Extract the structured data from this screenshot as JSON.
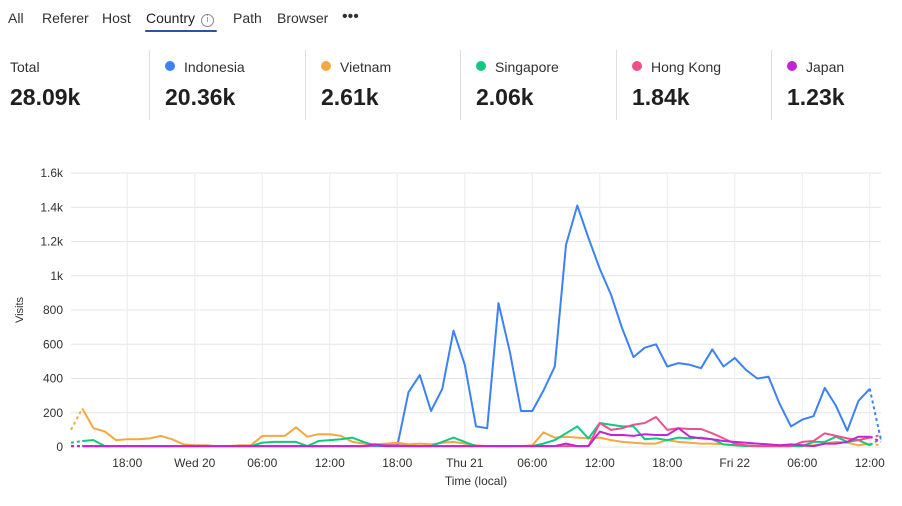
{
  "tabs": [
    {
      "label": "All",
      "x": 0
    },
    {
      "label": "Referer"
    },
    {
      "label": "Host"
    },
    {
      "label": "Country",
      "active": true
    },
    {
      "label": "Path"
    },
    {
      "label": "Browser"
    }
  ],
  "more_label": "•••",
  "info_glyph": "i",
  "stats": [
    {
      "label": "Total",
      "value": "28.09k",
      "color": ""
    },
    {
      "label": "Indonesia",
      "value": "20.36k",
      "color": "#3b82f6"
    },
    {
      "label": "Vietnam",
      "value": "2.61k",
      "color": "#f5a742"
    },
    {
      "label": "Singapore",
      "value": "2.06k",
      "color": "#10c981"
    },
    {
      "label": "Hong Kong",
      "value": "1.84k",
      "color": "#f0508a"
    },
    {
      "label": "Japan",
      "value": "1.23k",
      "color": "#c026d3"
    }
  ],
  "chart_data": {
    "type": "line",
    "xlabel": "Time (local)",
    "ylabel": "Visits",
    "ylim": [
      0,
      1600
    ],
    "yticks": [
      0,
      200,
      400,
      600,
      800,
      1000,
      1200,
      1400,
      1600
    ],
    "ytick_labels": [
      "0",
      "200",
      "400",
      "600",
      "800",
      "1k",
      "1.2k",
      "1.4k",
      "1.6k"
    ],
    "x_start_hour": 13,
    "x_step_hours": 1,
    "xticks": [
      {
        "hour": 18,
        "label": "18:00"
      },
      {
        "hour": 24,
        "label": "Wed 20"
      },
      {
        "hour": 30,
        "label": "06:00"
      },
      {
        "hour": 36,
        "label": "12:00"
      },
      {
        "hour": 42,
        "label": "18:00"
      },
      {
        "hour": 48,
        "label": "Thu 21"
      },
      {
        "hour": 54,
        "label": "06:00"
      },
      {
        "hour": 60,
        "label": "12:00"
      },
      {
        "hour": 66,
        "label": "18:00"
      },
      {
        "hour": 72,
        "label": "Fri 22"
      },
      {
        "hour": 78,
        "label": "06:00"
      },
      {
        "hour": 84,
        "label": "12:00"
      }
    ],
    "grid": true,
    "series": [
      {
        "name": "Indonesia",
        "color": "#3b82f6",
        "values": [
          5,
          5,
          5,
          5,
          5,
          5,
          5,
          5,
          5,
          5,
          5,
          5,
          5,
          5,
          5,
          5,
          5,
          5,
          5,
          5,
          5,
          5,
          5,
          5,
          5,
          5,
          5,
          5,
          5,
          5,
          320,
          420,
          210,
          340,
          680,
          480,
          120,
          110,
          840,
          560,
          210,
          210,
          330,
          470,
          1180,
          1410,
          1220,
          1040,
          890,
          690,
          525,
          580,
          600,
          470,
          490,
          480,
          460,
          570,
          470,
          520,
          450,
          400,
          410,
          250,
          120,
          160,
          180,
          345,
          240,
          95,
          270,
          340,
          40
        ]
      },
      {
        "name": "Vietnam",
        "color": "#f5a742",
        "values": [
          100,
          225,
          110,
          90,
          40,
          45,
          45,
          50,
          65,
          45,
          15,
          10,
          10,
          5,
          5,
          10,
          10,
          65,
          65,
          65,
          115,
          60,
          75,
          75,
          65,
          30,
          20,
          15,
          20,
          25,
          15,
          20,
          15,
          25,
          30,
          20,
          10,
          5,
          5,
          5,
          5,
          10,
          85,
          55,
          60,
          55,
          50,
          55,
          40,
          30,
          25,
          20,
          20,
          40,
          30,
          25,
          20,
          20,
          15,
          10,
          10,
          5,
          10,
          10,
          5,
          5,
          10,
          20,
          30,
          25,
          10,
          20,
          10
        ]
      },
      {
        "name": "Singapore",
        "color": "#10c981",
        "values": [
          25,
          35,
          40,
          5,
          5,
          5,
          5,
          5,
          5,
          5,
          5,
          5,
          5,
          5,
          5,
          5,
          5,
          25,
          30,
          30,
          30,
          5,
          35,
          40,
          45,
          55,
          30,
          10,
          10,
          10,
          5,
          5,
          5,
          30,
          55,
          30,
          5,
          5,
          5,
          5,
          5,
          5,
          20,
          40,
          80,
          120,
          50,
          140,
          130,
          120,
          120,
          45,
          50,
          40,
          55,
          50,
          55,
          45,
          15,
          10,
          5,
          5,
          5,
          5,
          5,
          5,
          30,
          30,
          60,
          30,
          40,
          10,
          50
        ]
      },
      {
        "name": "Hong Kong",
        "color": "#f0508a",
        "values": [
          5,
          5,
          5,
          5,
          5,
          5,
          5,
          5,
          5,
          5,
          5,
          5,
          5,
          5,
          5,
          5,
          5,
          5,
          5,
          5,
          5,
          5,
          5,
          5,
          5,
          5,
          5,
          10,
          10,
          10,
          5,
          5,
          5,
          5,
          5,
          5,
          5,
          5,
          5,
          5,
          5,
          5,
          5,
          5,
          5,
          5,
          5,
          140,
          100,
          110,
          130,
          140,
          175,
          100,
          110,
          105,
          105,
          80,
          50,
          20,
          10,
          5,
          5,
          5,
          5,
          30,
          35,
          80,
          65,
          50,
          40,
          55,
          70
        ]
      },
      {
        "name": "Japan",
        "color": "#c026d3",
        "values": [
          5,
          5,
          5,
          5,
          5,
          5,
          5,
          5,
          5,
          5,
          5,
          5,
          5,
          5,
          5,
          5,
          5,
          5,
          5,
          5,
          5,
          5,
          5,
          5,
          5,
          5,
          5,
          15,
          5,
          5,
          5,
          5,
          5,
          5,
          5,
          5,
          5,
          5,
          5,
          5,
          5,
          5,
          5,
          5,
          20,
          5,
          5,
          90,
          70,
          70,
          65,
          75,
          70,
          70,
          110,
          60,
          50,
          45,
          35,
          30,
          25,
          20,
          15,
          10,
          15,
          10,
          5,
          20,
          20,
          30,
          60,
          60,
          30
        ]
      }
    ]
  }
}
